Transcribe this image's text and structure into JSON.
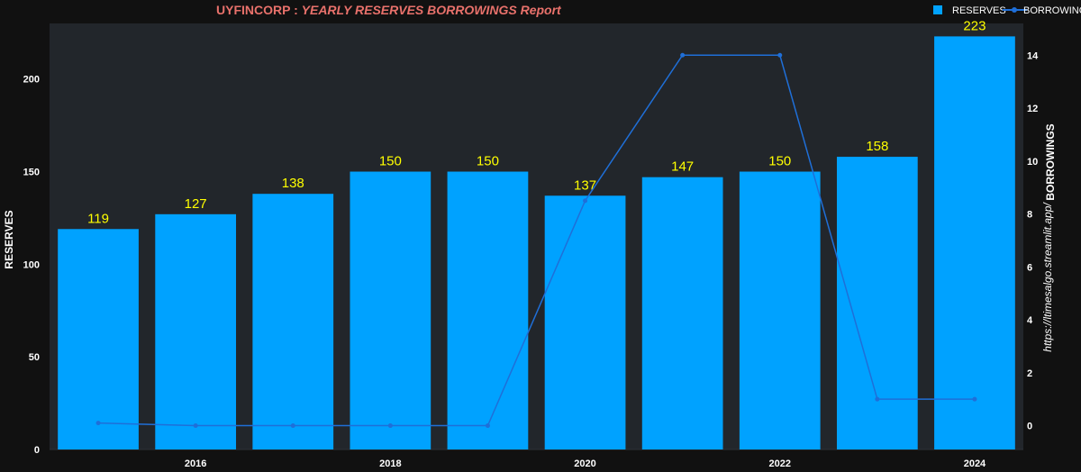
{
  "title": {
    "prefix": "UYFINCORP : ",
    "main": "YEARLY RESERVES BORROWINGS Report"
  },
  "watermark": "https://ltimesalgo.streamlit.app/",
  "colors": {
    "background": "#111111",
    "plot_bg": "#22262b",
    "bar": "#00a2ff",
    "line": "#1f6fd8",
    "bar_label": "#ffff00",
    "title": "#e8716b"
  },
  "legend": [
    {
      "name": "RESERVES",
      "symbol": "square"
    },
    {
      "name": "BORROWINGS",
      "symbol": "line-marker"
    }
  ],
  "chart_data": {
    "type": "bar",
    "title": "UYFINCORP : YEARLY RESERVES BORROWINGS Report",
    "x": [
      2015,
      2016,
      2017,
      2018,
      2019,
      2020,
      2021,
      2022,
      2023,
      2024
    ],
    "x_ticks": [
      "2016",
      "2018",
      "2020",
      "2022",
      "2024"
    ],
    "x_range": [
      2014.5,
      2024.5
    ],
    "ylabel": "RESERVES",
    "y_ticks": [
      "0",
      "50",
      "100",
      "150",
      "200"
    ],
    "ylim": [
      0,
      230
    ],
    "y2label": "BORROWINGS",
    "y2_ticks": [
      "0",
      "2",
      "4",
      "6",
      "8",
      "10",
      "12",
      "14"
    ],
    "y2lim": [
      -0.9,
      15.2
    ],
    "grid": false,
    "legend_position": "top-right",
    "series": [
      {
        "name": "RESERVES",
        "type": "bar",
        "axis": "left",
        "values": [
          119,
          127,
          138,
          150,
          150,
          137,
          147,
          150,
          158,
          223
        ],
        "labels": [
          "119",
          "127",
          "138",
          "150",
          "150",
          "137",
          "147",
          "150",
          "158",
          "223"
        ]
      },
      {
        "name": "BORROWINGS",
        "type": "line",
        "axis": "right",
        "values": [
          0.1,
          0,
          0,
          0,
          0,
          8.5,
          14,
          14,
          1,
          1
        ]
      }
    ]
  }
}
